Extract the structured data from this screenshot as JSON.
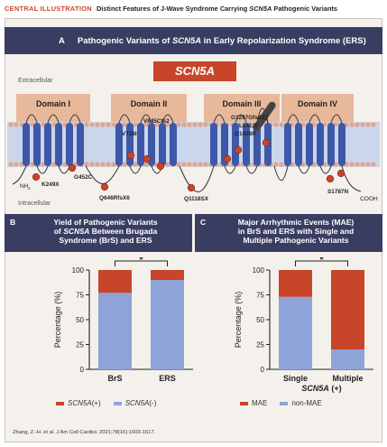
{
  "header": {
    "label": "CENTRAL ILLUSTRATION",
    "subtitle_pre": "Distinct Features of J-Wave Syndrome Carrying ",
    "subtitle_gene": "SCN5A",
    "subtitle_post": " Pathogenic Variants"
  },
  "panel_a": {
    "letter": "A",
    "title_pre": "Pathogenic Variants of ",
    "title_gene": "SCN5A",
    "title_post": " in Early Repolarization Syndrome (ERS)",
    "gene_label": "SCN5A",
    "extracellular": "Extracellular",
    "intracellular": "Intracellular",
    "domains": [
      "Domain I",
      "Domain II",
      "Domain III",
      "Domain IV"
    ],
    "termini": {
      "n": "NH",
      "n_sub": "2",
      "c": "COOH"
    },
    "variants": [
      "K249X",
      "G452C",
      "Q646RfsX6",
      "V728I",
      "V845Cfs2",
      "G1297GfsX22",
      "L1412F",
      "G1408R",
      "Q1118SX",
      "S1787N"
    ]
  },
  "panel_b": {
    "letter": "B",
    "title_line1": "Yield of Pathogenic Variants",
    "title_line2_pre": "of ",
    "title_line2_gene": "SCN5A",
    "title_line2_post": " Between Brugada",
    "title_line3": "Syndrome (BrS) and ERS"
  },
  "panel_c": {
    "letter": "C",
    "title_line1": "Major Arrhythmic Events (MAE)",
    "title_line2": "in BrS and ERS with Single and",
    "title_line3": "Multiple Pathogenic Variants"
  },
  "colors": {
    "red": "#c8452a",
    "blue": "#8ea3d8",
    "navy": "#3a3d62",
    "domain": "#e8b89a",
    "helix": "#3e58a8"
  },
  "chart_data": [
    {
      "type": "bar",
      "stacked": true,
      "categories": [
        "BrS",
        "ERS"
      ],
      "series": [
        {
          "name": "SCN5A (+)",
          "values": [
            23,
            10
          ]
        },
        {
          "name": "SCN5A (-)",
          "values": [
            77,
            90
          ]
        }
      ],
      "ylabel": "Percentage (%)",
      "ylim": [
        0,
        100
      ],
      "yticks": [
        0,
        25,
        50,
        75,
        100
      ],
      "significance": "*",
      "legend": {
        "pos_gene": "SCN5A",
        "pos_sign": " (+)",
        "neg_gene": "SCN5A",
        "neg_sign": " (-)"
      }
    },
    {
      "type": "bar",
      "stacked": true,
      "categories": [
        "Single",
        "Multiple"
      ],
      "xlabel_gene": "SCN5A",
      "xlabel_sign": " (+)",
      "series": [
        {
          "name": "MAE",
          "values": [
            27,
            80
          ]
        },
        {
          "name": "non-MAE",
          "values": [
            73,
            20
          ]
        }
      ],
      "ylabel": "Percentage (%)",
      "ylim": [
        0,
        100
      ],
      "yticks": [
        0,
        25,
        50,
        75,
        100
      ],
      "significance": "*",
      "legend": {
        "mae": "MAE",
        "non_mae": "non-MAE"
      }
    }
  ],
  "citation": "Zhang, Z.-H. et al. J Am Coll Cardiol. 2021;78(16):1603-1617."
}
